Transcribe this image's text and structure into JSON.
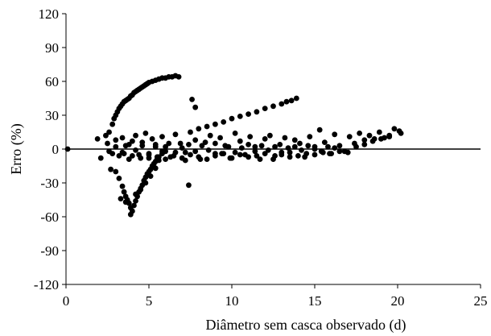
{
  "chart_data": {
    "type": "scatter",
    "xlabel": "Diâmetro sem casca observado (d)",
    "ylabel": "Erro (%)",
    "xlim": [
      0,
      25
    ],
    "ylim": [
      -120,
      120
    ],
    "xticks": [
      "0",
      "5",
      "10",
      "15",
      "20",
      "25"
    ],
    "yticks": [
      "120",
      "90",
      "60",
      "30",
      "0",
      "-30",
      "-60",
      "-90",
      "-120"
    ],
    "grid": false,
    "legend": "none",
    "reference_line_y": 0,
    "marker_color": "#000000",
    "series": [
      {
        "x": [
          0.1,
          1.9,
          2.1,
          2.4,
          2.6,
          2.7,
          2.8,
          2.9,
          3.0,
          3.1,
          3.2,
          3.3,
          3.4,
          3.5,
          3.6,
          3.7,
          3.8,
          3.9,
          4.0,
          4.1,
          4.2,
          4.3,
          4.4,
          4.5,
          4.6,
          4.7,
          4.8,
          4.9,
          5.0,
          5.2,
          5.4,
          5.6,
          5.8,
          6.0,
          6.2,
          6.4,
          6.6,
          6.8,
          2.5,
          2.8,
          3.0,
          3.2,
          3.4,
          3.6,
          3.8,
          4.0,
          4.2,
          4.4,
          4.6,
          4.8,
          5.0,
          5.2,
          5.4,
          5.6,
          5.8,
          6.0,
          6.3,
          6.6,
          6.9,
          7.2,
          7.5,
          7.8,
          8.1,
          8.4,
          8.7,
          9.0,
          9.3,
          9.6,
          9.9,
          10.2,
          10.5,
          10.8,
          11.1,
          11.4,
          11.7,
          12.0,
          12.3,
          12.6,
          12.9,
          13.2,
          13.5,
          13.8,
          14.1,
          14.4,
          14.7,
          15.0,
          15.3,
          15.6,
          15.9,
          16.2,
          16.5,
          16.8,
          17.1,
          17.4,
          17.7,
          18.0,
          18.3,
          18.6,
          18.9,
          19.2,
          19.5,
          19.8,
          20.1,
          2.6,
          3.0,
          3.4,
          3.8,
          4.2,
          4.6,
          5.0,
          5.4,
          5.8,
          6.2,
          6.6,
          7.0,
          7.4,
          7.8,
          8.2,
          8.6,
          9.0,
          9.4,
          9.8,
          10.2,
          10.6,
          11.0,
          11.4,
          11.8,
          12.2,
          12.6,
          13.0,
          13.4,
          13.8,
          14.2,
          14.6,
          15.0,
          15.4,
          15.8,
          16.2,
          3.0,
          3.2,
          3.4,
          3.5,
          3.6,
          3.7,
          3.8,
          3.9,
          4.0,
          4.1,
          4.2,
          4.3,
          4.4,
          4.5,
          4.6,
          4.7,
          4.8,
          4.9,
          5.0,
          5.1,
          5.2,
          5.3,
          5.4,
          5.5,
          5.6,
          5.8,
          6.0,
          3.3,
          3.6,
          3.9,
          4.2,
          4.5,
          4.8,
          5.1,
          5.4,
          7.6,
          7.8,
          8.0,
          8.5,
          9.0,
          9.5,
          10.0,
          10.5,
          11.0,
          11.5,
          12.0,
          12.5,
          13.0,
          13.3,
          13.6,
          13.9,
          7.4,
          7.2,
          3.5,
          4.0,
          4.5,
          5.0,
          5.5,
          6.0,
          6.5,
          7.0,
          7.5,
          8.0,
          8.5,
          9.0,
          9.5,
          10.0,
          10.5,
          11.0,
          11.5,
          12.0,
          12.5,
          13.0,
          13.5,
          14.0,
          14.5,
          15.0,
          15.5,
          16.0,
          16.5,
          17.0,
          17.5,
          18.0,
          18.5,
          19.0,
          19.5,
          20.2
        ],
        "y": [
          0,
          9,
          -8,
          12,
          15,
          -18,
          22,
          27,
          30,
          33,
          36,
          38,
          40,
          42,
          43,
          44,
          45,
          47,
          48,
          50,
          51,
          52,
          53,
          54,
          55,
          56,
          57,
          58,
          59,
          60,
          61,
          62,
          63,
          63,
          64,
          64,
          65,
          64,
          5,
          -4,
          8,
          -6,
          10,
          3,
          -9,
          7,
          12,
          -5,
          6,
          14,
          -8,
          9,
          4,
          -10,
          11,
          2,
          -7,
          13,
          5,
          -3,
          15,
          8,
          -9,
          6,
          12,
          -4,
          10,
          3,
          -8,
          14,
          7,
          -5,
          11,
          2,
          -9,
          9,
          12,
          -6,
          4,
          10,
          -3,
          8,
          5,
          -7,
          11,
          2,
          17,
          6,
          -4,
          13,
          3,
          -2,
          11,
          5,
          14,
          8,
          12,
          9,
          15,
          10,
          12,
          18,
          16,
          -2,
          2,
          -3,
          4,
          -1,
          3,
          -4,
          2,
          -2,
          5,
          -3,
          1,
          4,
          -2,
          3,
          -1,
          5,
          -4,
          2,
          -3,
          1,
          4,
          -2,
          3,
          -1,
          2,
          -3,
          1,
          2,
          -1,
          3,
          0,
          -2,
          2,
          1,
          -20,
          -26,
          -33,
          -38,
          -42,
          -45,
          -48,
          -52,
          -55,
          -50,
          -46,
          -42,
          -38,
          -35,
          -32,
          -28,
          -25,
          -22,
          -20,
          -18,
          -15,
          -13,
          -11,
          -9,
          -7,
          -4,
          -2,
          -44,
          -47,
          -58,
          -40,
          -36,
          -30,
          -24,
          -17,
          44,
          37,
          18,
          20,
          22,
          24,
          27,
          29,
          31,
          33,
          36,
          38,
          40,
          42,
          43,
          45,
          -32,
          -10,
          -4,
          -6,
          -8,
          -5,
          -7,
          -9,
          -6,
          -8,
          -5,
          -7,
          -9,
          -6,
          -4,
          -8,
          -5,
          -7,
          -6,
          -4,
          -9,
          -5,
          -7,
          -6,
          -4,
          -5,
          -3,
          -4,
          -2,
          -3,
          2,
          4,
          7,
          9,
          11,
          14
        ]
      }
    ]
  }
}
